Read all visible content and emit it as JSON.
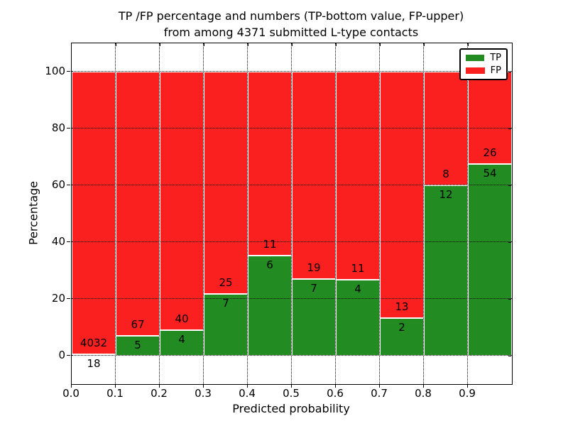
{
  "figure": {
    "title_line1": "TP /FP percentage and numbers (TP-bottom value, FP-upper)",
    "title_line2": "from among 4371 submitted L-type contacts",
    "xlabel": "Predicted probability",
    "ylabel": "Percentage"
  },
  "chart_data": {
    "type": "bar",
    "stacked": true,
    "title": "TP /FP percentage and numbers (TP-bottom value, FP-upper)\nfrom among 4371 submitted L-type contacts",
    "xlabel": "Predicted probability",
    "ylabel": "Percentage",
    "total_contacts": 4371,
    "xlim": [
      0.0,
      1.0
    ],
    "ylim": [
      -10,
      110
    ],
    "bin_width": 0.1,
    "categories": [
      "0.0-0.1",
      "0.1-0.2",
      "0.2-0.3",
      "0.3-0.4",
      "0.4-0.5",
      "0.5-0.6",
      "0.6-0.7",
      "0.7-0.8",
      "0.8-0.9",
      "0.9-1.0"
    ],
    "series": [
      {
        "name": "TP",
        "color": "#228b22",
        "counts": [
          18,
          5,
          4,
          7,
          6,
          7,
          4,
          2,
          12,
          54
        ],
        "percent": [
          0.4,
          6.9,
          9.1,
          21.9,
          35.3,
          26.9,
          26.7,
          13.3,
          60.0,
          67.5
        ]
      },
      {
        "name": "FP",
        "color": "#fb2020",
        "counts": [
          4032,
          67,
          40,
          25,
          11,
          19,
          11,
          13,
          8,
          26
        ],
        "percent": [
          99.6,
          93.1,
          90.9,
          78.1,
          64.7,
          73.1,
          73.3,
          86.7,
          40.0,
          32.5
        ]
      }
    ],
    "xticks": [
      "0.0",
      "0.1",
      "0.2",
      "0.3",
      "0.4",
      "0.5",
      "0.6",
      "0.7",
      "0.8",
      "0.9"
    ],
    "yticks": [
      "0",
      "20",
      "40",
      "60",
      "80",
      "100"
    ],
    "grid": true,
    "grid_style": "dotted",
    "bar_edge_color": "#ffffff",
    "legend": {
      "position": "upper right",
      "entries": [
        {
          "label": "TP",
          "color": "#228b22"
        },
        {
          "label": "FP",
          "color": "#fb2020"
        }
      ]
    }
  }
}
